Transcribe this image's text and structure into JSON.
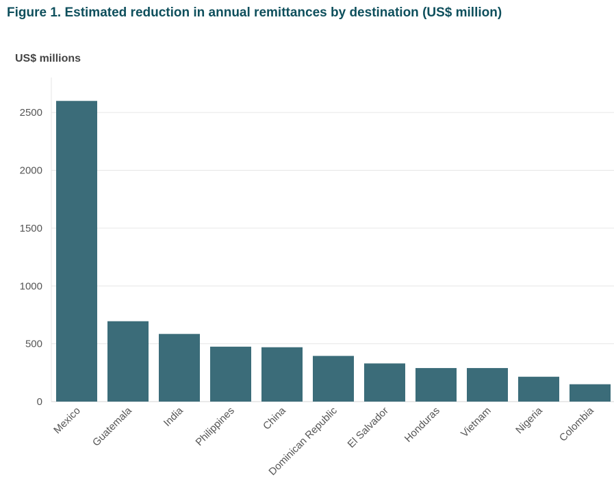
{
  "chart_data": {
    "type": "bar",
    "title": "Figure 1. Estimated reduction in annual remittances by destination (US$ million)",
    "ylabel": "US$ millions",
    "xlabel": "",
    "categories": [
      "Mexico",
      "Guatemala",
      "India",
      "Philippines",
      "China",
      "Dominican Republic",
      "El Salvador",
      "Honduras",
      "Vietnam",
      "Nigeria",
      "Colombia"
    ],
    "values": [
      2600,
      695,
      585,
      475,
      470,
      395,
      330,
      290,
      290,
      215,
      150
    ],
    "ylim": [
      0,
      2800
    ],
    "yticks": [
      0,
      500,
      1000,
      1500,
      2000,
      2500
    ],
    "grid": true,
    "bar_color": "#3b6c79",
    "title_color": "#0e4f5c"
  }
}
